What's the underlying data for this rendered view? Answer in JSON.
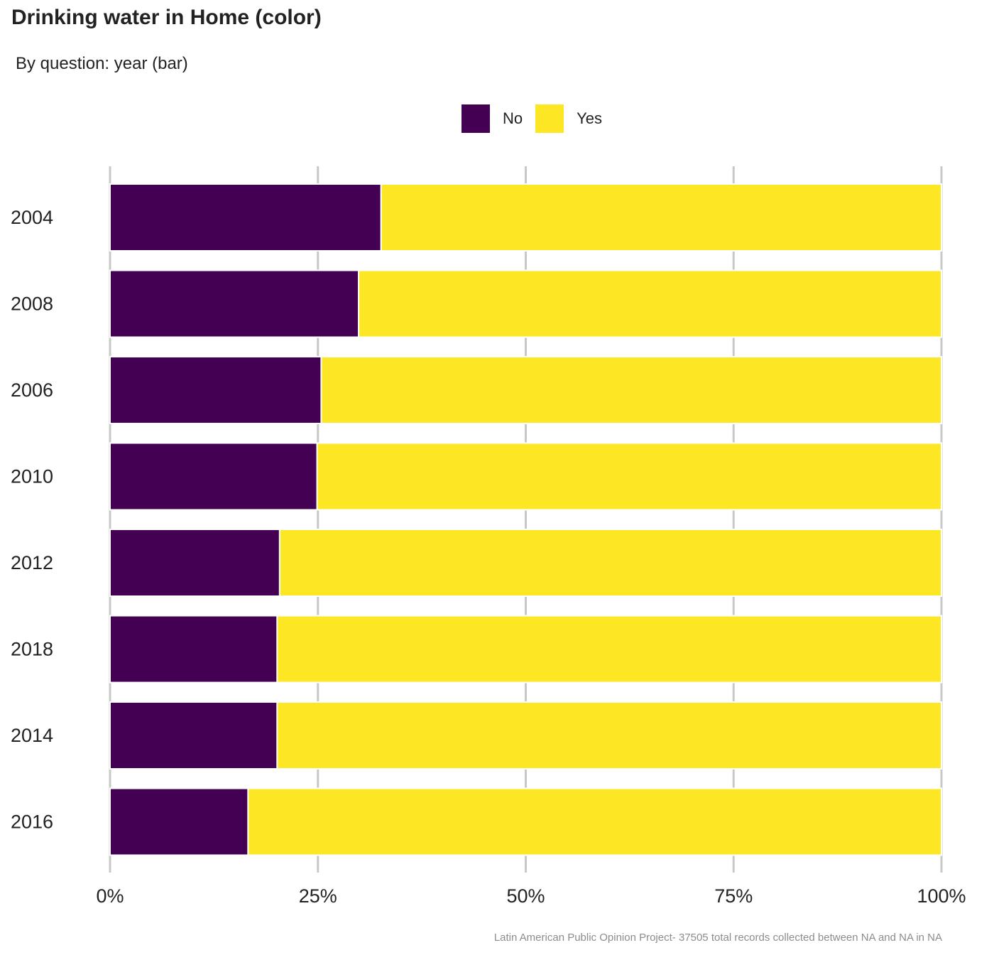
{
  "chart_data": {
    "type": "bar",
    "orientation": "horizontal",
    "stacked": true,
    "title": "Drinking water in Home (color)",
    "subtitle": "By question: year (bar)",
    "caption": "Latin American Public Opinion Project- 37505 total records collected between NA and NA in  NA",
    "categories": [
      "2004",
      "2008",
      "2006",
      "2010",
      "2012",
      "2018",
      "2014",
      "2016"
    ],
    "series": [
      {
        "name": "No",
        "color": "#440154",
        "values": [
          32.6,
          29.9,
          25.4,
          24.9,
          20.4,
          20.1,
          20.1,
          16.6
        ]
      },
      {
        "name": "Yes",
        "color": "#FDE725",
        "values": [
          67.4,
          70.1,
          74.6,
          75.1,
          79.6,
          79.9,
          79.9,
          83.4
        ]
      }
    ],
    "xlim": [
      0,
      100
    ],
    "xticks": [
      0,
      25,
      50,
      75,
      100
    ],
    "xtick_labels": [
      "0%",
      "25%",
      "50%",
      "75%",
      "100%"
    ],
    "legend_position": "top",
    "grid": "vertical tick marks only"
  }
}
